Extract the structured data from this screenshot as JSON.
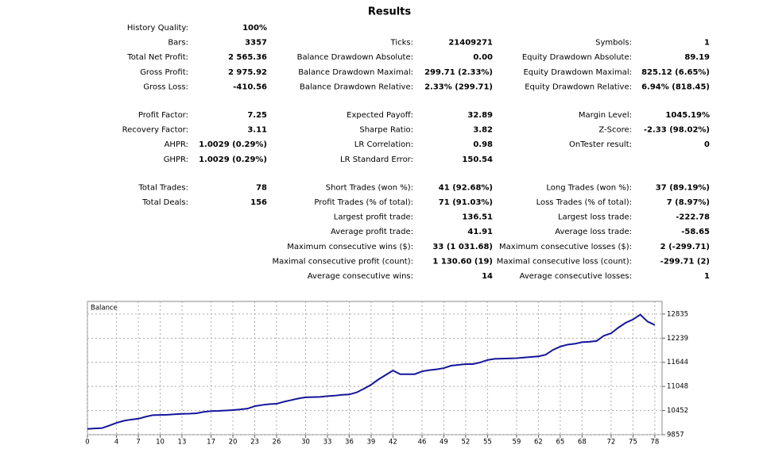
{
  "title": "Results",
  "stats": {
    "sections": [
      [
        [
          {
            "label": "History Quality:",
            "value": "100%"
          },
          null,
          null
        ],
        [
          {
            "label": "Bars:",
            "value": "3357"
          },
          {
            "label": "Ticks:",
            "value": "21409271"
          },
          {
            "label": "Symbols:",
            "value": "1"
          }
        ],
        [
          {
            "label": "Total Net Profit:",
            "value": "2 565.36"
          },
          {
            "label": "Balance Drawdown Absolute:",
            "value": "0.00"
          },
          {
            "label": "Equity Drawdown Absolute:",
            "value": "89.19"
          }
        ],
        [
          {
            "label": "Gross Profit:",
            "value": "2 975.92"
          },
          {
            "label": "Balance Drawdown Maximal:",
            "value": "299.71 (2.33%)"
          },
          {
            "label": "Equity Drawdown Maximal:",
            "value": "825.12 (6.65%)"
          }
        ],
        [
          {
            "label": "Gross Loss:",
            "value": "-410.56"
          },
          {
            "label": "Balance Drawdown Relative:",
            "value": "2.33% (299.71)"
          },
          {
            "label": "Equity Drawdown Relative:",
            "value": "6.94% (818.45)"
          }
        ]
      ],
      [
        [
          {
            "label": "Profit Factor:",
            "value": "7.25"
          },
          {
            "label": "Expected Payoff:",
            "value": "32.89"
          },
          {
            "label": "Margin Level:",
            "value": "1045.19%"
          }
        ],
        [
          {
            "label": "Recovery Factor:",
            "value": "3.11"
          },
          {
            "label": "Sharpe Ratio:",
            "value": "3.82"
          },
          {
            "label": "Z-Score:",
            "value": "-2.33 (98.02%)"
          }
        ],
        [
          {
            "label": "AHPR:",
            "value": "1.0029 (0.29%)"
          },
          {
            "label": "LR Correlation:",
            "value": "0.98"
          },
          {
            "label": "OnTester result:",
            "value": "0"
          }
        ],
        [
          {
            "label": "GHPR:",
            "value": "1.0029 (0.29%)"
          },
          {
            "label": "LR Standard Error:",
            "value": "150.54"
          },
          null
        ]
      ],
      [
        [
          {
            "label": "Total Trades:",
            "value": "78"
          },
          {
            "label": "Short Trades (won %):",
            "value": "41 (92.68%)"
          },
          {
            "label": "Long Trades (won %):",
            "value": "37 (89.19%)"
          }
        ],
        [
          {
            "label": "Total Deals:",
            "value": "156"
          },
          {
            "label": "Profit Trades (% of total):",
            "value": "71 (91.03%)"
          },
          {
            "label": "Loss Trades (% of total):",
            "value": "7 (8.97%)"
          }
        ],
        [
          null,
          {
            "label": "Largest profit trade:",
            "value": "136.51"
          },
          {
            "label": "Largest loss trade:",
            "value": "-222.78"
          }
        ],
        [
          null,
          {
            "label": "Average profit trade:",
            "value": "41.91"
          },
          {
            "label": "Average loss trade:",
            "value": "-58.65"
          }
        ],
        [
          null,
          {
            "label": "Maximum consecutive wins ($):",
            "value": "33 (1 031.68)"
          },
          {
            "label": "Maximum consecutive losses ($):",
            "value": "2 (-299.71)"
          }
        ],
        [
          null,
          {
            "label": "Maximal consecutive profit (count):",
            "value": "1 130.60 (19)"
          },
          {
            "label": "Maximal consecutive loss (count):",
            "value": "-299.71 (2)"
          }
        ],
        [
          null,
          {
            "label": "Average consecutive wins:",
            "value": "14"
          },
          {
            "label": "Average consecutive losses:",
            "value": "1"
          }
        ]
      ]
    ]
  },
  "chart_data": {
    "type": "line",
    "title": "Balance",
    "x": [
      0,
      1,
      2,
      3,
      4,
      5,
      6,
      7,
      8,
      9,
      10,
      11,
      12,
      13,
      14,
      15,
      16,
      17,
      18,
      19,
      20,
      21,
      22,
      23,
      24,
      25,
      26,
      27,
      28,
      29,
      30,
      31,
      32,
      33,
      34,
      35,
      36,
      37,
      38,
      39,
      40,
      41,
      42,
      43,
      44,
      45,
      46,
      47,
      48,
      49,
      50,
      51,
      52,
      53,
      54,
      55,
      56,
      57,
      58,
      59,
      60,
      61,
      62,
      63,
      64,
      65,
      66,
      67,
      68,
      69,
      70,
      71,
      72,
      73,
      74,
      75,
      76,
      77,
      78
    ],
    "series": [
      {
        "name": "Balance",
        "color": "#14149b",
        "values": [
          10000,
          10010,
          10020,
          10080,
          10150,
          10200,
          10230,
          10250,
          10300,
          10340,
          10345,
          10350,
          10360,
          10370,
          10375,
          10385,
          10420,
          10440,
          10445,
          10455,
          10465,
          10480,
          10500,
          10560,
          10590,
          10610,
          10620,
          10670,
          10710,
          10750,
          10780,
          10785,
          10790,
          10810,
          10820,
          10840,
          10850,
          10900,
          10990,
          11090,
          11220,
          11330,
          11440,
          11350,
          11350,
          11350,
          11420,
          11450,
          11470,
          11500,
          11560,
          11580,
          11600,
          11600,
          11640,
          11700,
          11730,
          11735,
          11740,
          11745,
          11760,
          11775,
          11790,
          11830,
          11950,
          12030,
          12080,
          12100,
          12140,
          12150,
          12170,
          12300,
          12360,
          12500,
          12620,
          12700,
          12820,
          12650,
          12565
        ]
      }
    ],
    "xlim": [
      0,
      79
    ],
    "xticks": [
      0,
      4,
      7,
      10,
      13,
      17,
      20,
      23,
      26,
      30,
      33,
      36,
      39,
      42,
      46,
      49,
      52,
      55,
      59,
      62,
      65,
      68,
      72,
      75,
      78
    ],
    "ylim": [
      9857,
      13146
    ],
    "yticks": [
      9857,
      10452,
      11048,
      11644,
      12239,
      12835
    ],
    "grid": true
  }
}
